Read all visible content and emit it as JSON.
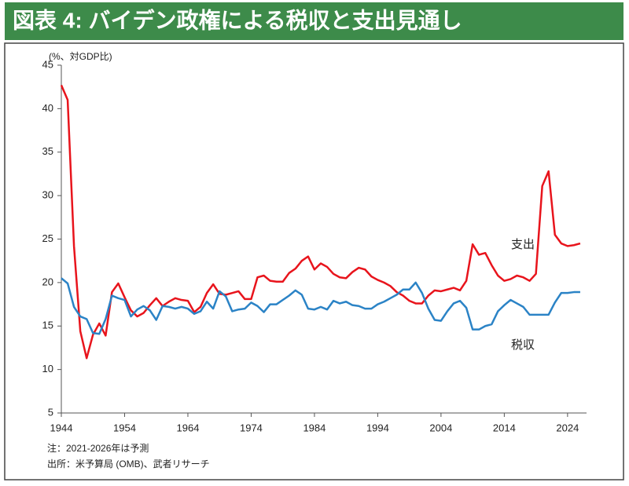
{
  "chart_data": {
    "type": "line",
    "title": "図表 4: バイデン政権による税収と支出見通し",
    "y_label": "(%、対GDP比)",
    "notes": [
      "注：2021-2026年は予測",
      "出所：米予算局 (OMB)、武者リサーチ"
    ],
    "x": [
      1944,
      1945,
      1946,
      1947,
      1948,
      1949,
      1950,
      1951,
      1952,
      1953,
      1954,
      1955,
      1956,
      1957,
      1958,
      1959,
      1960,
      1961,
      1962,
      1963,
      1964,
      1965,
      1966,
      1967,
      1968,
      1969,
      1970,
      1971,
      1972,
      1973,
      1974,
      1975,
      1976,
      1977,
      1978,
      1979,
      1980,
      1981,
      1982,
      1983,
      1984,
      1985,
      1986,
      1987,
      1988,
      1989,
      1990,
      1991,
      1992,
      1993,
      1994,
      1995,
      1996,
      1997,
      1998,
      1999,
      2000,
      2001,
      2002,
      2003,
      2004,
      2005,
      2006,
      2007,
      2008,
      2009,
      2010,
      2011,
      2012,
      2013,
      2014,
      2015,
      2016,
      2017,
      2018,
      2019,
      2020,
      2021,
      2022,
      2023,
      2024,
      2025,
      2026
    ],
    "series": [
      {
        "name": "支出",
        "color": "#e8141c",
        "values": [
          42.7,
          41.0,
          24.2,
          14.4,
          11.3,
          14.0,
          15.3,
          13.9,
          18.9,
          19.9,
          18.3,
          16.8,
          16.1,
          16.5,
          17.4,
          18.2,
          17.3,
          17.8,
          18.2,
          18.0,
          17.9,
          16.6,
          17.2,
          18.8,
          19.8,
          18.7,
          18.6,
          18.8,
          19.0,
          18.1,
          18.1,
          20.6,
          20.8,
          20.2,
          20.1,
          20.1,
          21.1,
          21.6,
          22.5,
          23.0,
          21.5,
          22.2,
          21.8,
          21.0,
          20.6,
          20.5,
          21.2,
          21.7,
          21.5,
          20.7,
          20.3,
          20.0,
          19.6,
          18.9,
          18.5,
          17.9,
          17.6,
          17.6,
          18.5,
          19.1,
          19.0,
          19.2,
          19.4,
          19.1,
          20.2,
          24.4,
          23.2,
          23.4,
          22.0,
          20.8,
          20.2,
          20.4,
          20.8,
          20.6,
          20.2,
          21.0,
          31.1,
          32.8,
          25.5,
          24.5,
          24.2,
          24.3,
          24.5
        ]
      },
      {
        "name": "税収",
        "color": "#2b83c6",
        "values": [
          20.5,
          19.9,
          17.2,
          16.1,
          15.8,
          14.2,
          14.1,
          15.8,
          18.5,
          18.2,
          18.0,
          16.1,
          16.9,
          17.3,
          16.8,
          15.7,
          17.3,
          17.2,
          17.0,
          17.2,
          17.0,
          16.4,
          16.7,
          17.8,
          17.0,
          19.0,
          18.4,
          16.7,
          16.9,
          17.0,
          17.7,
          17.3,
          16.6,
          17.5,
          17.5,
          18.0,
          18.5,
          19.1,
          18.6,
          17.0,
          16.9,
          17.2,
          16.9,
          17.9,
          17.6,
          17.8,
          17.4,
          17.3,
          17.0,
          17.0,
          17.5,
          17.8,
          18.2,
          18.6,
          19.2,
          19.2,
          20.0,
          18.8,
          17.0,
          15.7,
          15.6,
          16.7,
          17.6,
          17.9,
          17.1,
          14.6,
          14.6,
          15.0,
          15.2,
          16.7,
          17.4,
          18.0,
          17.6,
          17.2,
          16.3,
          16.3,
          16.3,
          16.3,
          17.7,
          18.8,
          18.8,
          18.9,
          18.9
        ]
      }
    ],
    "xlim": [
      1944,
      2027
    ],
    "xticks": [
      1944,
      1954,
      1964,
      1974,
      1984,
      1994,
      2004,
      2014,
      2024
    ],
    "ylim": [
      5,
      45
    ],
    "yticks": [
      5,
      10,
      15,
      20,
      25,
      30,
      35,
      40,
      45
    ]
  }
}
